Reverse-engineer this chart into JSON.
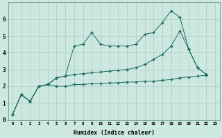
{
  "xlabel": "Humidex (Indice chaleur)",
  "ylabel": "",
  "bg_color": "#cce8e0",
  "grid_color": "#aaccC4",
  "line_color": "#1a6b5a",
  "xlim": [
    -0.5,
    23.5
  ],
  "ylim": [
    0,
    7
  ],
  "xticks": [
    0,
    1,
    2,
    3,
    4,
    5,
    6,
    7,
    8,
    9,
    10,
    11,
    12,
    13,
    14,
    15,
    16,
    17,
    18,
    19,
    20,
    21,
    22,
    23
  ],
  "yticks": [
    0,
    1,
    2,
    3,
    4,
    5,
    6
  ],
  "series1_x": [
    0,
    1,
    2,
    3,
    4,
    5,
    6,
    7,
    8,
    9,
    10,
    11,
    12,
    13,
    14,
    15,
    16,
    17,
    18,
    19,
    20,
    21,
    22
  ],
  "series1_y": [
    0.3,
    1.5,
    1.1,
    2.0,
    2.1,
    2.5,
    2.6,
    4.4,
    4.5,
    5.2,
    4.5,
    4.4,
    4.4,
    4.4,
    4.5,
    5.1,
    5.2,
    5.8,
    6.5,
    6.1,
    4.2,
    3.1,
    2.7
  ],
  "series2_x": [
    0,
    1,
    2,
    3,
    4,
    5,
    6,
    7,
    8,
    9,
    10,
    11,
    12,
    13,
    14,
    15,
    16,
    17,
    18,
    19,
    20,
    21,
    22
  ],
  "series2_y": [
    0.3,
    1.5,
    1.1,
    2.0,
    2.1,
    2.0,
    2.0,
    2.1,
    2.1,
    2.15,
    2.15,
    2.2,
    2.2,
    2.25,
    2.25,
    2.3,
    2.3,
    2.35,
    2.4,
    2.5,
    2.55,
    2.6,
    2.65
  ],
  "series3_x": [
    0,
    1,
    2,
    3,
    4,
    5,
    6,
    7,
    8,
    9,
    10,
    11,
    12,
    13,
    14,
    15,
    16,
    17,
    18,
    19,
    20,
    21,
    22
  ],
  "series3_y": [
    0.3,
    1.5,
    1.1,
    2.0,
    2.1,
    2.5,
    2.6,
    2.7,
    2.75,
    2.8,
    2.85,
    2.9,
    2.95,
    3.0,
    3.1,
    3.3,
    3.6,
    3.9,
    4.4,
    5.3,
    4.2,
    3.1,
    2.7
  ]
}
